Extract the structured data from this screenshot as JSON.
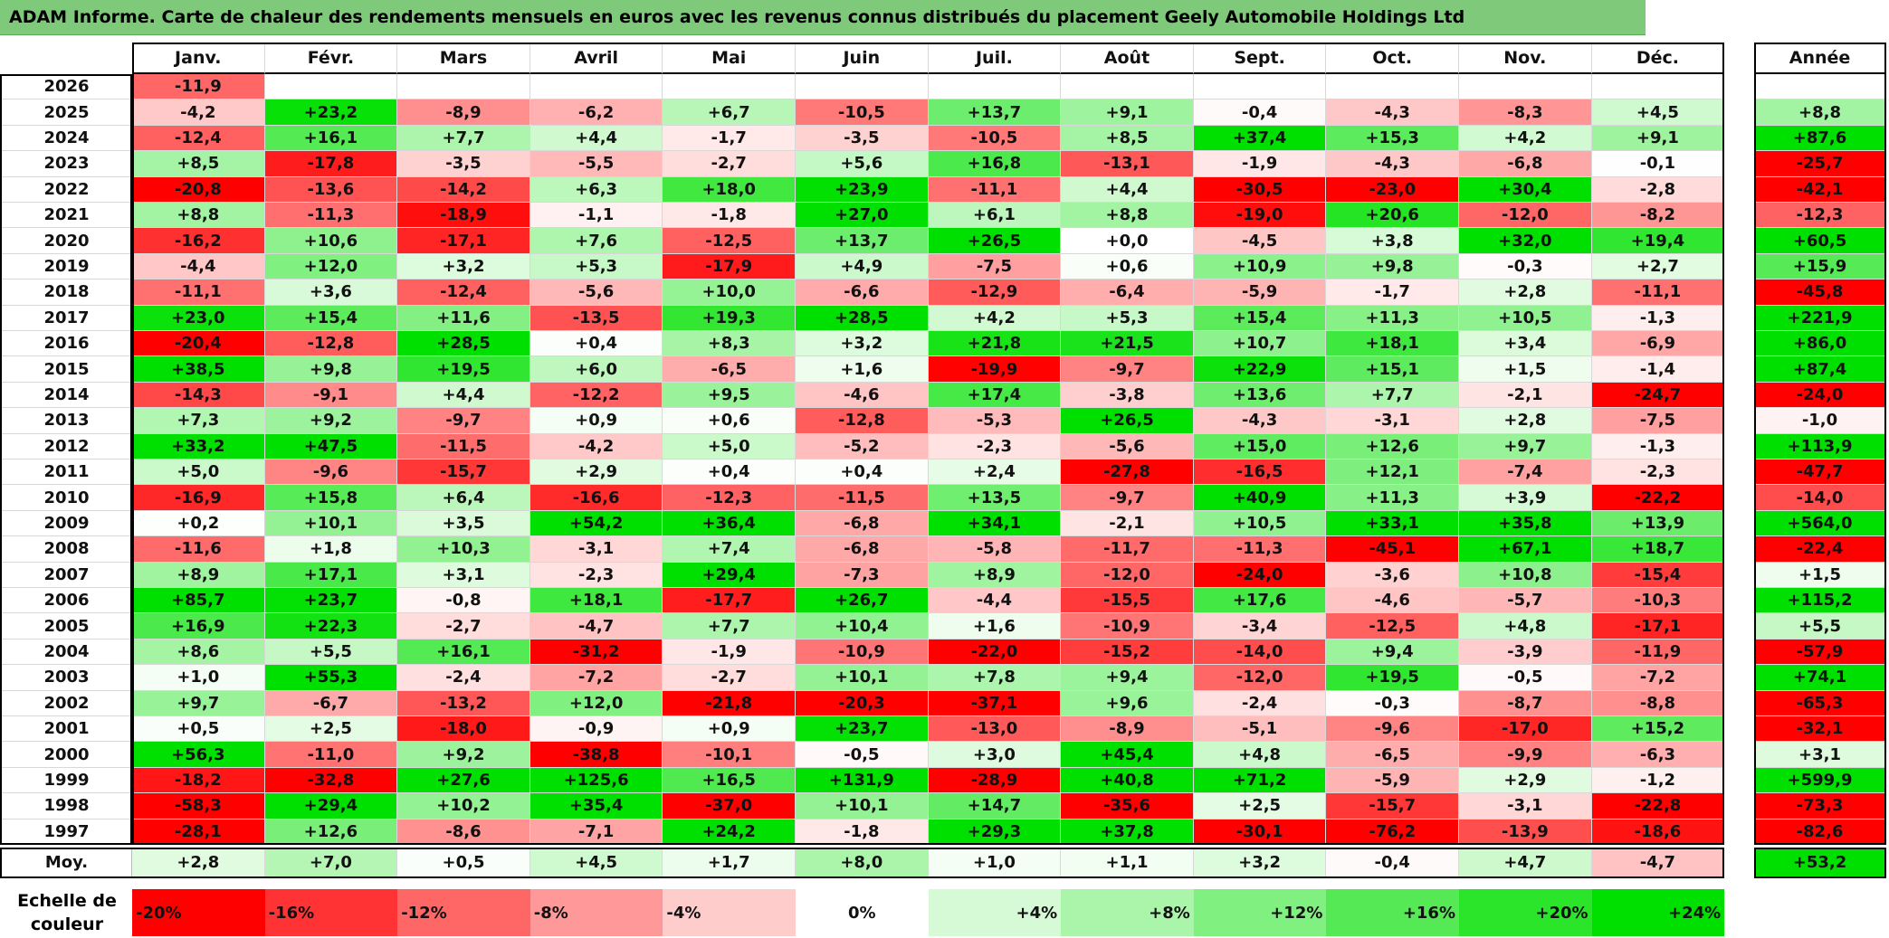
{
  "title": "ADAM Informe. Carte de chaleur des rendements mensuels en euros avec les revenus connus distribués du placement Geely Automobile Holdings Ltd",
  "chart_data": {
    "type": "heatmap",
    "title": "ADAM Informe. Carte de chaleur des rendements mensuels en euros avec les revenus connus distribués du placement Geely Automobile Holdings Ltd",
    "columns": [
      "Janv.",
      "Févr.",
      "Mars",
      "Avril",
      "Mai",
      "Juin",
      "Juil.",
      "Août",
      "Sept.",
      "Oct.",
      "Nov.",
      "Déc."
    ],
    "annual_header": "Année",
    "rows": [
      {
        "year": "2026",
        "months": [
          "-11,9",
          "",
          "",
          "",
          "",
          "",
          "",
          "",
          "",
          "",
          "",
          ""
        ],
        "annual": ""
      },
      {
        "year": "2025",
        "months": [
          "-4,2",
          "+23,2",
          "-8,9",
          "-6,2",
          "+6,7",
          "-10,5",
          "+13,7",
          "+9,1",
          "-0,4",
          "-4,3",
          "-8,3",
          "+4,5"
        ],
        "annual": "+8,8"
      },
      {
        "year": "2024",
        "months": [
          "-12,4",
          "+16,1",
          "+7,7",
          "+4,4",
          "-1,7",
          "-3,5",
          "-10,5",
          "+8,5",
          "+37,4",
          "+15,3",
          "+4,2",
          "+9,1"
        ],
        "annual": "+87,6"
      },
      {
        "year": "2023",
        "months": [
          "+8,5",
          "-17,8",
          "-3,5",
          "-5,5",
          "-2,7",
          "+5,6",
          "+16,8",
          "-13,1",
          "-1,9",
          "-4,3",
          "-6,8",
          "-0,1"
        ],
        "annual": "-25,7"
      },
      {
        "year": "2022",
        "months": [
          "-20,8",
          "-13,6",
          "-14,2",
          "+6,3",
          "+18,0",
          "+23,9",
          "-11,1",
          "+4,4",
          "-30,5",
          "-23,0",
          "+30,4",
          "-2,8"
        ],
        "annual": "-42,1"
      },
      {
        "year": "2021",
        "months": [
          "+8,8",
          "-11,3",
          "-18,9",
          "-1,1",
          "-1,8",
          "+27,0",
          "+6,1",
          "+8,8",
          "-19,0",
          "+20,6",
          "-12,0",
          "-8,2"
        ],
        "annual": "-12,3"
      },
      {
        "year": "2020",
        "months": [
          "-16,2",
          "+10,6",
          "-17,1",
          "+7,6",
          "-12,5",
          "+13,7",
          "+26,5",
          "+0,0",
          "-4,5",
          "+3,8",
          "+32,0",
          "+19,4"
        ],
        "annual": "+60,5"
      },
      {
        "year": "2019",
        "months": [
          "-4,4",
          "+12,0",
          "+3,2",
          "+5,3",
          "-17,9",
          "+4,9",
          "-7,5",
          "+0,6",
          "+10,9",
          "+9,8",
          "-0,3",
          "+2,7"
        ],
        "annual": "+15,9"
      },
      {
        "year": "2018",
        "months": [
          "-11,1",
          "+3,6",
          "-12,4",
          "-5,6",
          "+10,0",
          "-6,6",
          "-12,9",
          "-6,4",
          "-5,9",
          "-1,7",
          "+2,8",
          "-11,1"
        ],
        "annual": "-45,8"
      },
      {
        "year": "2017",
        "months": [
          "+23,0",
          "+15,4",
          "+11,6",
          "-13,5",
          "+19,3",
          "+28,5",
          "+4,2",
          "+5,3",
          "+15,4",
          "+11,3",
          "+10,5",
          "-1,3"
        ],
        "annual": "+221,9"
      },
      {
        "year": "2016",
        "months": [
          "-20,4",
          "-12,8",
          "+28,5",
          "+0,4",
          "+8,3",
          "+3,2",
          "+21,8",
          "+21,5",
          "+10,7",
          "+18,1",
          "+3,4",
          "-6,9"
        ],
        "annual": "+86,0"
      },
      {
        "year": "2015",
        "months": [
          "+38,5",
          "+9,8",
          "+19,5",
          "+6,0",
          "-6,5",
          "+1,6",
          "-19,9",
          "-9,7",
          "+22,9",
          "+15,1",
          "+1,5",
          "-1,4"
        ],
        "annual": "+87,4"
      },
      {
        "year": "2014",
        "months": [
          "-14,3",
          "-9,1",
          "+4,4",
          "-12,2",
          "+9,5",
          "-4,6",
          "+17,4",
          "-3,8",
          "+13,6",
          "+7,7",
          "-2,1",
          "-24,7"
        ],
        "annual": "-24,0"
      },
      {
        "year": "2013",
        "months": [
          "+7,3",
          "+9,2",
          "-9,7",
          "+0,9",
          "+0,6",
          "-12,8",
          "-5,3",
          "+26,5",
          "-4,3",
          "-3,1",
          "+2,8",
          "-7,5"
        ],
        "annual": "-1,0"
      },
      {
        "year": "2012",
        "months": [
          "+33,2",
          "+47,5",
          "-11,5",
          "-4,2",
          "+5,0",
          "-5,2",
          "-2,3",
          "-5,6",
          "+15,0",
          "+12,6",
          "+9,7",
          "-1,3"
        ],
        "annual": "+113,9"
      },
      {
        "year": "2011",
        "months": [
          "+5,0",
          "-9,6",
          "-15,7",
          "+2,9",
          "+0,4",
          "+0,4",
          "+2,4",
          "-27,8",
          "-16,5",
          "+12,1",
          "-7,4",
          "-2,3"
        ],
        "annual": "-47,7"
      },
      {
        "year": "2010",
        "months": [
          "-16,9",
          "+15,8",
          "+6,4",
          "-16,6",
          "-12,3",
          "-11,5",
          "+13,5",
          "-9,7",
          "+40,9",
          "+11,3",
          "+3,9",
          "-22,2"
        ],
        "annual": "-14,0"
      },
      {
        "year": "2009",
        "months": [
          "+0,2",
          "+10,1",
          "+3,5",
          "+54,2",
          "+36,4",
          "-6,8",
          "+34,1",
          "-2,1",
          "+10,5",
          "+33,1",
          "+35,8",
          "+13,9"
        ],
        "annual": "+564,0"
      },
      {
        "year": "2008",
        "months": [
          "-11,6",
          "+1,8",
          "+10,3",
          "-3,1",
          "+7,4",
          "-6,8",
          "-5,8",
          "-11,7",
          "-11,3",
          "-45,1",
          "+67,1",
          "+18,7"
        ],
        "annual": "-22,4"
      },
      {
        "year": "2007",
        "months": [
          "+8,9",
          "+17,1",
          "+3,1",
          "-2,3",
          "+29,4",
          "-7,3",
          "+8,9",
          "-12,0",
          "-24,0",
          "-3,6",
          "+10,8",
          "-15,4"
        ],
        "annual": "+1,5"
      },
      {
        "year": "2006",
        "months": [
          "+85,7",
          "+23,7",
          "-0,8",
          "+18,1",
          "-17,7",
          "+26,7",
          "-4,4",
          "-15,5",
          "+17,6",
          "-4,6",
          "-5,7",
          "-10,3"
        ],
        "annual": "+115,2"
      },
      {
        "year": "2005",
        "months": [
          "+16,9",
          "+22,3",
          "-2,7",
          "-4,7",
          "+7,7",
          "+10,4",
          "+1,6",
          "-10,9",
          "-3,4",
          "-12,5",
          "+4,8",
          "-17,1"
        ],
        "annual": "+5,5"
      },
      {
        "year": "2004",
        "months": [
          "+8,6",
          "+5,5",
          "+16,1",
          "-31,2",
          "-1,9",
          "-10,9",
          "-22,0",
          "-15,2",
          "-14,0",
          "+9,4",
          "-3,9",
          "-11,9"
        ],
        "annual": "-57,9"
      },
      {
        "year": "2003",
        "months": [
          "+1,0",
          "+55,3",
          "-2,4",
          "-7,2",
          "-2,7",
          "+10,1",
          "+7,8",
          "+9,4",
          "-12,0",
          "+19,5",
          "-0,5",
          "-7,2"
        ],
        "annual": "+74,1"
      },
      {
        "year": "2002",
        "months": [
          "+9,7",
          "-6,7",
          "-13,2",
          "+12,0",
          "-21,8",
          "-20,3",
          "-37,1",
          "+9,6",
          "-2,4",
          "-0,3",
          "-8,7",
          "-8,8"
        ],
        "annual": "-65,3"
      },
      {
        "year": "2001",
        "months": [
          "+0,5",
          "+2,5",
          "-18,0",
          "-0,9",
          "+0,9",
          "+23,7",
          "-13,0",
          "-8,9",
          "-5,1",
          "-9,6",
          "-17,0",
          "+15,2"
        ],
        "annual": "-32,1"
      },
      {
        "year": "2000",
        "months": [
          "+56,3",
          "-11,0",
          "+9,2",
          "-38,8",
          "-10,1",
          "-0,5",
          "+3,0",
          "+45,4",
          "+4,8",
          "-6,5",
          "-9,9",
          "-6,3"
        ],
        "annual": "+3,1"
      },
      {
        "year": "1999",
        "months": [
          "-18,2",
          "-32,8",
          "+27,6",
          "+125,6",
          "+16,5",
          "+131,9",
          "-28,9",
          "+40,8",
          "+71,2",
          "-5,9",
          "+2,9",
          "-1,2"
        ],
        "annual": "+599,9"
      },
      {
        "year": "1998",
        "months": [
          "-58,3",
          "+29,4",
          "+10,2",
          "+35,4",
          "-37,0",
          "+10,1",
          "+14,7",
          "-35,6",
          "+2,5",
          "-15,7",
          "-3,1",
          "-22,8"
        ],
        "annual": "-73,3"
      },
      {
        "year": "1997",
        "months": [
          "-28,1",
          "+12,6",
          "-8,6",
          "-7,1",
          "+24,2",
          "-1,8",
          "+29,3",
          "+37,8",
          "-30,1",
          "-76,2",
          "-13,9",
          "-18,6"
        ],
        "annual": "-82,6"
      }
    ],
    "average": {
      "label": "Moy.",
      "months": [
        "+2,8",
        "+7,0",
        "+0,5",
        "+4,5",
        "+1,7",
        "+8,0",
        "+1,0",
        "+1,1",
        "+3,2",
        "-0,4",
        "+4,7",
        "-4,7"
      ],
      "annual": "+53,2"
    },
    "color_scale": {
      "label": "Echelle de couleur",
      "stops": [
        "-20%",
        "-16%",
        "-12%",
        "-8%",
        "-4%",
        "0%",
        "+4%",
        "+8%",
        "+12%",
        "+16%",
        "+20%",
        "+24%"
      ],
      "negative_color": "#ff0000",
      "neutral_color": "#ffffff",
      "positive_color": "#00e000"
    }
  }
}
